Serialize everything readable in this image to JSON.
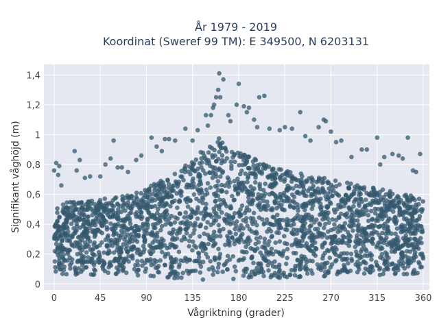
{
  "chart_data": {
    "type": "scatter",
    "title_line1": "År 1979 - 2019",
    "title_line2": "Koordinat (Sweref 99 TM): E 349500, N 6203131",
    "xlabel": "Vågriktning (grader)",
    "ylabel": "Signifikant våghöjd (m)",
    "xlim": [
      -10,
      366
    ],
    "ylim": [
      -0.04,
      1.47
    ],
    "xticks": [
      0,
      45,
      90,
      135,
      180,
      225,
      270,
      315,
      360
    ],
    "xtick_labels": [
      "0",
      "45",
      "90",
      "135",
      "180",
      "225",
      "270",
      "315",
      "360"
    ],
    "yticks": [
      0,
      0.2,
      0.4,
      0.6,
      0.8,
      1,
      1.2,
      1.4
    ],
    "ytick_labels": [
      "0",
      "0,2",
      "0,4",
      "0,6",
      "0,8",
      "1",
      "1,2",
      "1,4"
    ],
    "grid": true,
    "marker_color": "#34586e",
    "plot_bg": "#e5e8f0",
    "envelope": {
      "x": [
        0,
        15,
        30,
        45,
        60,
        75,
        90,
        105,
        120,
        135,
        150,
        160,
        165,
        180,
        195,
        210,
        225,
        240,
        255,
        270,
        285,
        300,
        315,
        330,
        345,
        360
      ],
      "dense_top": [
        0.52,
        0.55,
        0.56,
        0.57,
        0.58,
        0.6,
        0.64,
        0.7,
        0.76,
        0.84,
        0.92,
        0.98,
        0.96,
        0.88,
        0.84,
        0.8,
        0.76,
        0.74,
        0.72,
        0.7,
        0.68,
        0.66,
        0.64,
        0.62,
        0.6,
        0.58
      ],
      "dense_bottom": [
        0.07,
        0.06,
        0.06,
        0.06,
        0.06,
        0.06,
        0.05,
        0.04,
        0.03,
        0.03,
        0.02,
        0.03,
        0.03,
        0.03,
        0.04,
        0.04,
        0.04,
        0.04,
        0.05,
        0.05,
        0.05,
        0.05,
        0.05,
        0.06,
        0.06,
        0.07
      ]
    },
    "outliers": [
      [
        0,
        0.76
      ],
      [
        2,
        0.81
      ],
      [
        4,
        0.73
      ],
      [
        5,
        0.79
      ],
      [
        7,
        0.66
      ],
      [
        20,
        0.89
      ],
      [
        22,
        0.76
      ],
      [
        25,
        0.83
      ],
      [
        30,
        0.71
      ],
      [
        35,
        0.72
      ],
      [
        45,
        0.72
      ],
      [
        50,
        0.8
      ],
      [
        55,
        0.84
      ],
      [
        58,
        0.96
      ],
      [
        62,
        0.78
      ],
      [
        66,
        0.78
      ],
      [
        72,
        0.75
      ],
      [
        80,
        0.83
      ],
      [
        85,
        0.86
      ],
      [
        95,
        0.98
      ],
      [
        100,
        0.92
      ],
      [
        105,
        0.89
      ],
      [
        108,
        0.97
      ],
      [
        112,
        0.97
      ],
      [
        118,
        0.96
      ],
      [
        128,
        1.04
      ],
      [
        135,
        0.96
      ],
      [
        140,
        1.03
      ],
      [
        148,
        1.13
      ],
      [
        150,
        1.06
      ],
      [
        153,
        1.13
      ],
      [
        155,
        1.18
      ],
      [
        156,
        1.2
      ],
      [
        158,
        1.25
      ],
      [
        160,
        1.3
      ],
      [
        161,
        1.41
      ],
      [
        162,
        1.25
      ],
      [
        165,
        1.37
      ],
      [
        170,
        1.13
      ],
      [
        172,
        1.09
      ],
      [
        178,
        1.2
      ],
      [
        180,
        1.34
      ],
      [
        185,
        1.19
      ],
      [
        188,
        1.15
      ],
      [
        190,
        1.18
      ],
      [
        195,
        1.1
      ],
      [
        198,
        1.05
      ],
      [
        200,
        1.25
      ],
      [
        205,
        1.26
      ],
      [
        210,
        1.04
      ],
      [
        220,
        1.03
      ],
      [
        225,
        1.05
      ],
      [
        232,
        1.04
      ],
      [
        240,
        1.15
      ],
      [
        245,
        0.99
      ],
      [
        250,
        0.96
      ],
      [
        258,
        1.05
      ],
      [
        263,
        1.1
      ],
      [
        265,
        1.09
      ],
      [
        270,
        1.02
      ],
      [
        275,
        0.95
      ],
      [
        280,
        0.96
      ],
      [
        290,
        0.85
      ],
      [
        300,
        0.9
      ],
      [
        305,
        0.9
      ],
      [
        315,
        0.98
      ],
      [
        318,
        0.8
      ],
      [
        322,
        0.85
      ],
      [
        330,
        0.87
      ],
      [
        336,
        0.86
      ],
      [
        340,
        0.84
      ],
      [
        345,
        0.98
      ],
      [
        350,
        0.76
      ],
      [
        353,
        0.75
      ],
      [
        357,
        0.87
      ]
    ]
  }
}
